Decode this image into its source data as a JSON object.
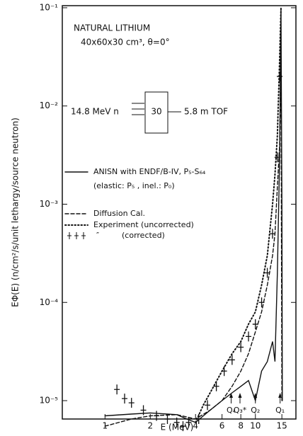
{
  "chart_data": {
    "type": "line",
    "title": "NATURAL LITHIUM",
    "subtitle": "40x60x30 cm³, θ=0°",
    "x_label": "E (MeV)",
    "y_label": "EΦ(E) (n/cm²/s/unit lethargy/source neutron)",
    "x_log": true,
    "y_log": true,
    "xlim": [
      0.52,
      18.6
    ],
    "ylim": [
      6.5e-06,
      0.105
    ],
    "xticks": [
      1,
      2,
      4,
      6,
      8,
      10,
      15
    ],
    "yticks": [
      {
        "value": 1e-05,
        "label": "10⁻⁵"
      },
      {
        "value": 0.0001,
        "label": "10⁻⁴"
      },
      {
        "value": 0.001,
        "label": "10⁻³"
      },
      {
        "value": 0.01,
        "label": "10⁻²"
      },
      {
        "value": 0.1,
        "label": "10⁻¹"
      }
    ],
    "setup": {
      "source": "14.8 MeV n",
      "thickness": "30",
      "detector": "5.8 m TOF"
    },
    "legend_note": "(elastic: P₅ , inel.: P₀)",
    "ditto": "″",
    "series": [
      {
        "name": "ANISN with ENDF/B-IV, P₅-S₆₄",
        "style": "solid",
        "color": "#111111",
        "x": [
          1.0,
          1.5,
          2.0,
          3.0,
          3.5,
          4.0,
          5.0,
          6.0,
          7.0,
          8.0,
          9.0,
          10.0,
          11.0,
          12.0,
          13.0,
          13.5,
          14.0,
          14.5,
          14.8,
          15.0,
          15.1
        ],
        "values": [
          7e-06,
          7.3e-06,
          7.5e-06,
          7.2e-06,
          6.5e-06,
          6e-06,
          8e-06,
          1e-05,
          1.2e-05,
          1.4e-05,
          1.6e-05,
          1e-05,
          2e-05,
          2.5e-05,
          4e-05,
          2.5e-05,
          0.0002,
          0.003,
          0.1,
          0.001,
          1e-05
        ]
      },
      {
        "name": "Diffusion Cal.",
        "style": "dashed",
        "color": "#111111",
        "x": [
          1.0,
          1.5,
          2.0,
          3.0,
          4.0,
          5.0,
          6.0,
          7.0,
          8.0,
          9.0,
          10.0,
          11.0,
          12.0,
          13.0,
          13.5,
          14.0,
          14.5,
          14.8,
          15.0
        ],
        "values": [
          5.5e-06,
          6.5e-06,
          7e-06,
          7.2e-06,
          6.5e-06,
          8e-06,
          1e-05,
          1.4e-05,
          2e-05,
          3e-05,
          5e-05,
          8e-05,
          0.00015,
          0.0003,
          0.0005,
          0.0015,
          0.004,
          0.03,
          1e-05
        ]
      },
      {
        "name": "Experiment (uncorrected)",
        "style": "dotted",
        "color": "#111111",
        "x": [
          4.0,
          4.5,
          5.0,
          6.0,
          7.0,
          8.0,
          9.0,
          10.0,
          11.0,
          12.0,
          13.0,
          13.5,
          14.0,
          14.5,
          14.8
        ],
        "values": [
          6e-06,
          9e-06,
          1.2e-05,
          2e-05,
          3e-05,
          4e-05,
          6e-05,
          8e-05,
          0.00015,
          0.0003,
          0.001,
          0.002,
          0.005,
          0.03,
          0.1
        ]
      },
      {
        "name": "(corrected)",
        "style": "cross",
        "color": "#111111",
        "x": [
          1.2,
          1.35,
          1.5,
          1.8,
          2.2,
          2.6,
          3.0,
          3.3,
          3.6,
          4.2,
          4.8,
          5.5,
          6.2,
          7.0,
          8.0,
          9.0,
          10.0,
          11.0,
          12.0,
          13.0,
          14.0,
          14.5
        ],
        "values": [
          1.3e-05,
          1.05e-05,
          9.5e-06,
          8e-06,
          7e-06,
          6.5e-06,
          6e-06,
          5.5e-06,
          6e-06,
          6.5e-06,
          9e-06,
          1.4e-05,
          2e-05,
          2.6e-05,
          3.5e-05,
          4.5e-05,
          6e-05,
          0.0001,
          0.0002,
          0.0005,
          0.003,
          0.02
        ]
      }
    ],
    "markers": [
      {
        "label": "Q₄",
        "x": 6.9
      },
      {
        "label": "Q₃*",
        "x": 7.9
      },
      {
        "label": "Q₂",
        "x": 10.0
      },
      {
        "label": "Q₁",
        "x": 14.6
      }
    ]
  }
}
